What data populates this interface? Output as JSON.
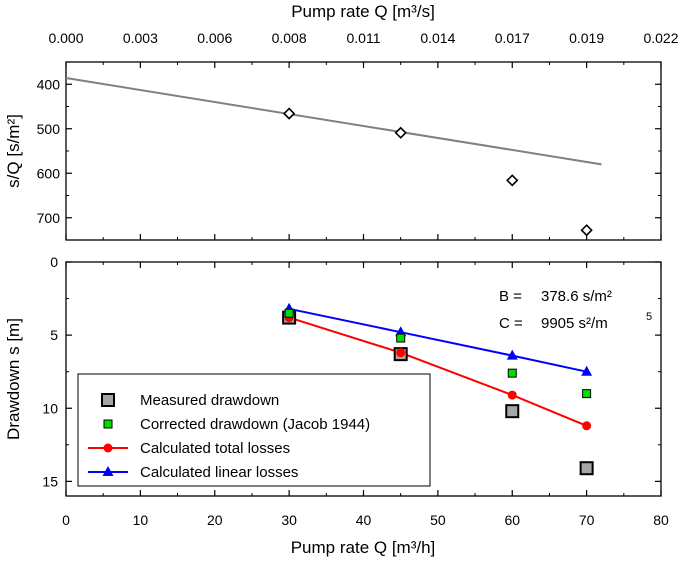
{
  "chart_data": [
    {
      "type": "scatter",
      "panel": "top",
      "title": "",
      "xlabel_top": "Pump rate Q  [m³/s]",
      "ylabel": "s/Q  [s/m²]",
      "x_top_ticks": [
        "0.000",
        "0.003",
        "0.006",
        "0.008",
        "0.011",
        "0.014",
        "0.017",
        "0.019",
        "0.022"
      ],
      "x_top_tick_values_m3h": [
        0,
        10,
        20,
        30,
        40,
        50,
        60,
        70,
        80
      ],
      "xlim_m3h": [
        0,
        80
      ],
      "ylim": [
        350,
        750
      ],
      "y_inverted": true,
      "y_ticks": [
        400,
        500,
        600,
        700
      ],
      "series": [
        {
          "name": "s/Q",
          "marker": "diamond",
          "x": [
            30,
            45,
            60,
            70
          ],
          "y": [
            466,
            509,
            616,
            728
          ]
        },
        {
          "name": "fit line",
          "line": true,
          "color": "#808080",
          "x": [
            0,
            72
          ],
          "y": [
            386,
            580
          ]
        }
      ]
    },
    {
      "type": "line",
      "panel": "bottom",
      "xlabel": "Pump rate Q  [m³/h]",
      "ylabel": "Drawdown s [m]",
      "xlim": [
        0,
        80
      ],
      "ylim": [
        0,
        16
      ],
      "y_inverted": true,
      "x_ticks": [
        0,
        10,
        20,
        30,
        40,
        50,
        60,
        70,
        80
      ],
      "y_ticks": [
        0,
        5,
        10,
        15
      ],
      "annotations": {
        "b_label": "B =",
        "b_value": "378.6 s/m²",
        "c_label": "C =",
        "c_value": "9905 s²/m",
        "c_exp": "5"
      },
      "legend_position": "bottom-left",
      "series": [
        {
          "name": "Measured drawdown",
          "marker": "square-gray",
          "x": [
            30,
            45,
            60,
            70
          ],
          "y": [
            3.8,
            6.3,
            10.2,
            14.1
          ]
        },
        {
          "name": "Corrected drawdown (Jacob 1944)",
          "marker": "square-green",
          "x": [
            30,
            45,
            60,
            70
          ],
          "y": [
            3.5,
            5.2,
            7.6,
            9.0
          ]
        },
        {
          "name": "Calculated total losses",
          "marker": "circle",
          "color": "#ff0000",
          "x": [
            30,
            45,
            60,
            70
          ],
          "y": [
            3.8,
            6.2,
            9.1,
            11.2
          ]
        },
        {
          "name": "Calculated linear losses",
          "marker": "triangle",
          "color": "#0000ff",
          "x": [
            30,
            45,
            60,
            70
          ],
          "y": [
            3.2,
            4.8,
            6.4,
            7.5
          ]
        }
      ]
    }
  ]
}
